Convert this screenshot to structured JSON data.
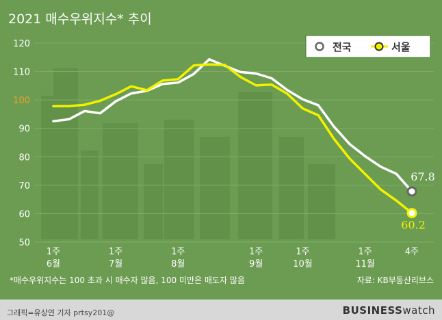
{
  "title": "2021 매수우위지수* 추이",
  "footnote": "*매수우위지수는 100 초과 시 매수자 많음, 100 미만은 매도자 많음",
  "source": "자료: KB부동산리브스",
  "credit": "그래픽=유상연 기자 prtsy201@",
  "brand_bold": "BUSINESS",
  "brand_light": "watch",
  "colors": {
    "background": "#6b9c52",
    "national": "#ffffff",
    "seoul": "#f2f200",
    "highlight_tick": "#f0a030",
    "axis_text": "#ffffff"
  },
  "chart_data": {
    "type": "line",
    "ylim": [
      50,
      120
    ],
    "yticks": [
      50,
      60,
      70,
      80,
      90,
      100,
      110,
      120
    ],
    "highlight_ytick": 100,
    "x_tick_labels": [
      {
        "index": 0,
        "line1": "1주",
        "line2": "6월"
      },
      {
        "index": 4,
        "line1": "1주",
        "line2": "7월"
      },
      {
        "index": 8,
        "line1": "1주",
        "line2": "8월"
      },
      {
        "index": 13,
        "line1": "1주",
        "line2": "9월"
      },
      {
        "index": 16,
        "line1": "1주",
        "line2": "10월"
      },
      {
        "index": 20,
        "line1": "1주",
        "line2": "11월"
      },
      {
        "index": 23,
        "line1": "4주",
        "line2": ""
      }
    ],
    "series": [
      {
        "name": "전국",
        "values": [
          92.5,
          93.2,
          96.1,
          95.3,
          99.5,
          102.3,
          103.2,
          105.6,
          106.1,
          109.1,
          114.3,
          112.0,
          109.8,
          109.3,
          107.6,
          103.5,
          100.2,
          98.1,
          90.6,
          84.5,
          80.2,
          76.5,
          74.0,
          67.8
        ],
        "end_label": "67.8"
      },
      {
        "name": "서울",
        "values": [
          97.8,
          97.8,
          98.3,
          99.7,
          102.0,
          104.8,
          103.4,
          106.8,
          107.3,
          112.1,
          112.5,
          112.3,
          108.1,
          105.1,
          105.4,
          102.2,
          97.0,
          94.6,
          86.3,
          79.4,
          73.9,
          68.5,
          64.6,
          60.2
        ],
        "end_label": "60.2"
      }
    ]
  }
}
